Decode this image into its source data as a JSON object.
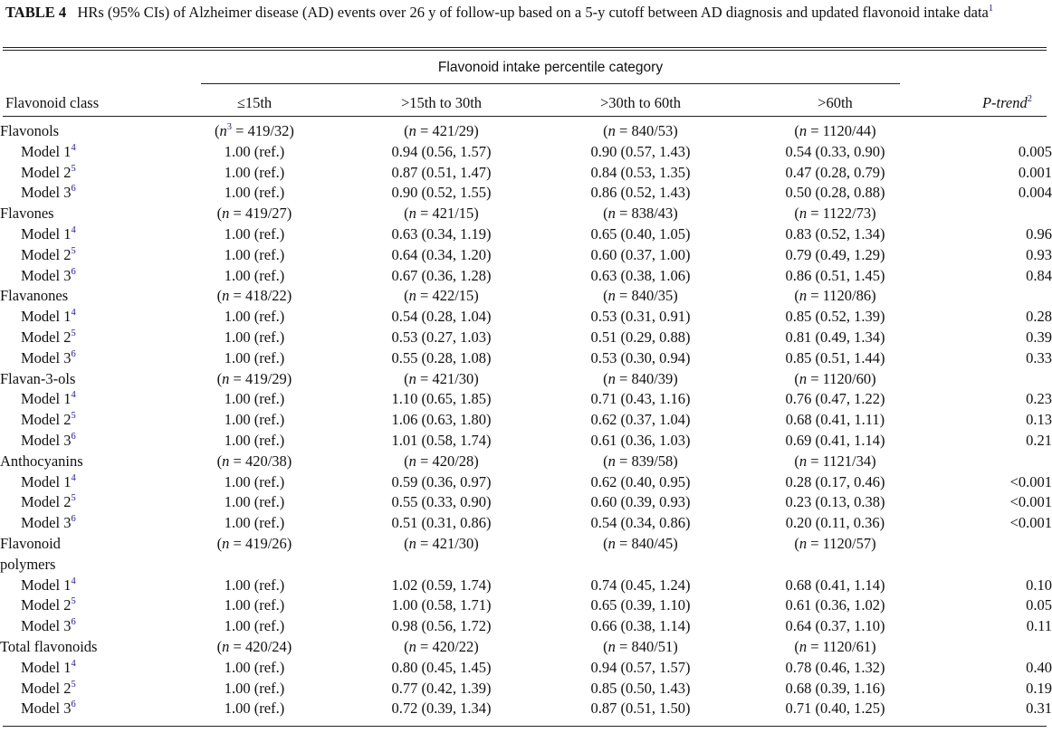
{
  "caption": {
    "label": "TABLE 4",
    "text": "HRs (95% CIs) of Alzheimer disease (AD) events over 26 y of follow-up based on a 5-y cutoff between AD diagnosis and updated flavonoid intake data",
    "footnote_marker": "1"
  },
  "header": {
    "spanner": "Flavonoid intake percentile category",
    "col_class": "Flavonoid class",
    "col1": "≤15th",
    "col2": ">15th to 30th",
    "col3": ">30th to 60th",
    "col4": ">60th",
    "col_ptrend": "P-trend",
    "ptrend_marker": "2"
  },
  "rows": [
    {
      "type": "group",
      "label": "Flavonols",
      "c1": "(n3 = 419/32)",
      "c2": "(n = 421/29)",
      "c3": "(n = 840/53)",
      "c4": "(n = 1120/44)",
      "p": ""
    },
    {
      "type": "model",
      "label": "Model 1",
      "sup": "4",
      "c1": "1.00 (ref.)",
      "c2": "0.94 (0.56, 1.57)",
      "c3": "0.90 (0.57, 1.43)",
      "c4": "0.54 (0.33, 0.90)",
      "p": "0.005"
    },
    {
      "type": "model",
      "label": "Model 2",
      "sup": "5",
      "c1": "1.00 (ref.)",
      "c2": "0.87 (0.51, 1.47)",
      "c3": "0.84 (0.53, 1.35)",
      "c4": "0.47 (0.28, 0.79)",
      "p": "0.001"
    },
    {
      "type": "model",
      "label": "Model 3",
      "sup": "6",
      "c1": "1.00 (ref.)",
      "c2": "0.90 (0.52, 1.55)",
      "c3": "0.86 (0.52, 1.43)",
      "c4": "0.50 (0.28, 0.88)",
      "p": "0.004"
    },
    {
      "type": "group",
      "label": "Flavones",
      "c1": "(n = 419/27)",
      "c2": "(n = 421/15)",
      "c3": "(n = 838/43)",
      "c4": "(n = 1122/73)",
      "p": ""
    },
    {
      "type": "model",
      "label": "Model 1",
      "sup": "4",
      "c1": "1.00 (ref.)",
      "c2": "0.63 (0.34, 1.19)",
      "c3": "0.65 (0.40, 1.05)",
      "c4": "0.83 (0.52, 1.34)",
      "p": "0.96"
    },
    {
      "type": "model",
      "label": "Model 2",
      "sup": "5",
      "c1": "1.00 (ref.)",
      "c2": "0.64 (0.34, 1.20)",
      "c3": "0.60 (0.37, 1.00)",
      "c4": "0.79 (0.49, 1.29)",
      "p": "0.93"
    },
    {
      "type": "model",
      "label": "Model 3",
      "sup": "6",
      "c1": "1.00 (ref.)",
      "c2": "0.67 (0.36, 1.28)",
      "c3": "0.63 (0.38, 1.06)",
      "c4": "0.86 (0.51, 1.45)",
      "p": "0.84"
    },
    {
      "type": "group",
      "label": "Flavanones",
      "c1": "(n = 418/22)",
      "c2": "(n = 422/15)",
      "c3": "(n = 840/35)",
      "c4": "(n = 1120/86)",
      "p": ""
    },
    {
      "type": "model",
      "label": "Model 1",
      "sup": "4",
      "c1": "1.00 (ref.)",
      "c2": "0.54 (0.28, 1.04)",
      "c3": "0.53 (0.31, 0.91)",
      "c4": "0.85 (0.52, 1.39)",
      "p": "0.28"
    },
    {
      "type": "model",
      "label": "Model 2",
      "sup": "5",
      "c1": "1.00 (ref.)",
      "c2": "0.53 (0.27, 1.03)",
      "c3": "0.51 (0.29, 0.88)",
      "c4": "0.81 (0.49, 1.34)",
      "p": "0.39"
    },
    {
      "type": "model",
      "label": "Model 3",
      "sup": "6",
      "c1": "1.00 (ref.)",
      "c2": "0.55 (0.28, 1.08)",
      "c3": "0.53 (0.30, 0.94)",
      "c4": "0.85 (0.51, 1.44)",
      "p": "0.33"
    },
    {
      "type": "group",
      "label": "Flavan-3-ols",
      "c1": "(n = 419/29)",
      "c2": "(n = 421/30)",
      "c3": "(n = 840/39)",
      "c4": "(n = 1120/60)",
      "p": ""
    },
    {
      "type": "model",
      "label": "Model 1",
      "sup": "4",
      "c1": "1.00 (ref.)",
      "c2": "1.10 (0.65, 1.85)",
      "c3": "0.71 (0.43, 1.16)",
      "c4": "0.76 (0.47, 1.22)",
      "p": "0.23"
    },
    {
      "type": "model",
      "label": "Model 2",
      "sup": "5",
      "c1": "1.00 (ref.)",
      "c2": "1.06 (0.63, 1.80)",
      "c3": "0.62 (0.37, 1.04)",
      "c4": "0.68 (0.41, 1.11)",
      "p": "0.13"
    },
    {
      "type": "model",
      "label": "Model 3",
      "sup": "6",
      "c1": "1.00 (ref.)",
      "c2": "1.01 (0.58, 1.74)",
      "c3": "0.61 (0.36, 1.03)",
      "c4": "0.69 (0.41, 1.14)",
      "p": "0.21"
    },
    {
      "type": "group",
      "label": "Anthocyanins",
      "c1": "(n = 420/38)",
      "c2": "(n = 420/28)",
      "c3": "(n = 839/58)",
      "c4": "(n = 1121/34)",
      "p": ""
    },
    {
      "type": "model",
      "label": "Model 1",
      "sup": "4",
      "c1": "1.00 (ref.)",
      "c2": "0.59 (0.36, 0.97)",
      "c3": "0.62 (0.40, 0.95)",
      "c4": "0.28 (0.17, 0.46)",
      "p": "<0.001"
    },
    {
      "type": "model",
      "label": "Model 2",
      "sup": "5",
      "c1": "1.00 (ref.)",
      "c2": "0.55 (0.33, 0.90)",
      "c3": "0.60 (0.39, 0.93)",
      "c4": "0.23 (0.13, 0.38)",
      "p": "<0.001"
    },
    {
      "type": "model",
      "label": "Model 3",
      "sup": "6",
      "c1": "1.00 (ref.)",
      "c2": "0.51 (0.31, 0.86)",
      "c3": "0.54 (0.34, 0.86)",
      "c4": "0.20 (0.11, 0.36)",
      "p": "<0.001"
    },
    {
      "type": "group",
      "label": "Flavonoid",
      "c1": "(n = 419/26)",
      "c2": "(n = 421/30)",
      "c3": "(n = 840/45)",
      "c4": "(n = 1120/57)",
      "p": ""
    },
    {
      "type": "group-cont",
      "label": "polymers",
      "c1": "",
      "c2": "",
      "c3": "",
      "c4": "",
      "p": ""
    },
    {
      "type": "model",
      "label": "Model 1",
      "sup": "4",
      "c1": "1.00 (ref.)",
      "c2": "1.02 (0.59, 1.74)",
      "c3": "0.74 (0.45, 1.24)",
      "c4": "0.68 (0.41, 1.14)",
      "p": "0.10"
    },
    {
      "type": "model",
      "label": "Model 2",
      "sup": "5",
      "c1": "1.00 (ref.)",
      "c2": "1.00 (0.58, 1.71)",
      "c3": "0.65 (0.39, 1.10)",
      "c4": "0.61 (0.36, 1.02)",
      "p": "0.05"
    },
    {
      "type": "model",
      "label": "Model 3",
      "sup": "6",
      "c1": "1.00 (ref.)",
      "c2": "0.98 (0.56, 1.72)",
      "c3": "0.66 (0.38, 1.14)",
      "c4": "0.64 (0.37, 1.10)",
      "p": "0.11"
    },
    {
      "type": "group",
      "label": "Total flavonoids",
      "c1": "(n = 420/24)",
      "c2": "(n = 420/22)",
      "c3": "(n = 840/51)",
      "c4": "(n = 1120/61)",
      "p": ""
    },
    {
      "type": "model",
      "label": "Model 1",
      "sup": "4",
      "c1": "1.00 (ref.)",
      "c2": "0.80 (0.45, 1.45)",
      "c3": "0.94 (0.57, 1.57)",
      "c4": "0.78 (0.46, 1.32)",
      "p": "0.40"
    },
    {
      "type": "model",
      "label": "Model 2",
      "sup": "5",
      "c1": "1.00 (ref.)",
      "c2": "0.77 (0.42, 1.39)",
      "c3": "0.85 (0.50, 1.43)",
      "c4": "0.68 (0.39, 1.16)",
      "p": "0.19"
    },
    {
      "type": "model",
      "label": "Model 3",
      "sup": "6",
      "c1": "1.00 (ref.)",
      "c2": "0.72 (0.39, 1.34)",
      "c3": "0.87 (0.51, 1.50)",
      "c4": "0.71 (0.40, 1.25)",
      "p": "0.31"
    }
  ]
}
